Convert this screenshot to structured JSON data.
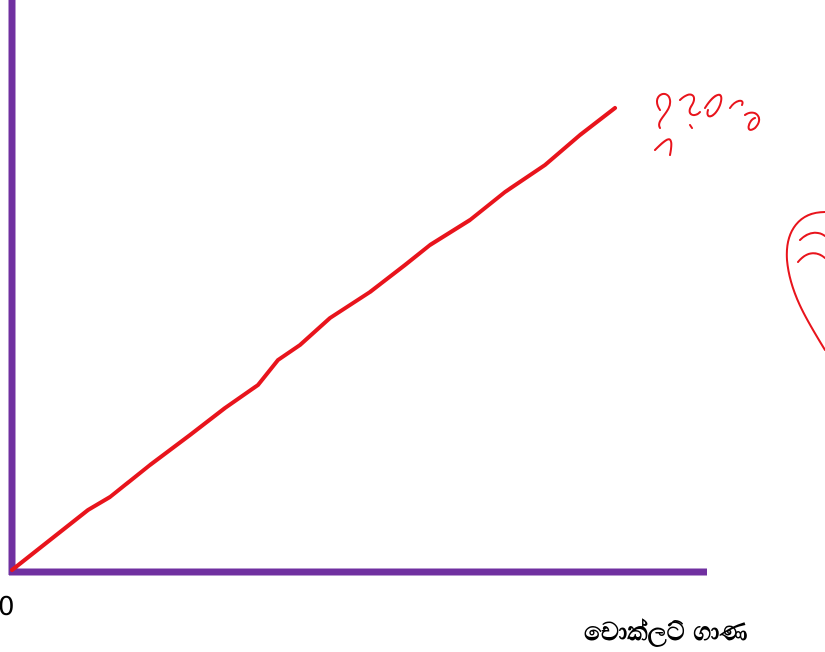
{
  "axes": {
    "origin_label": "0",
    "x_label": "චොක්ලට් ගාණ"
  }
}
